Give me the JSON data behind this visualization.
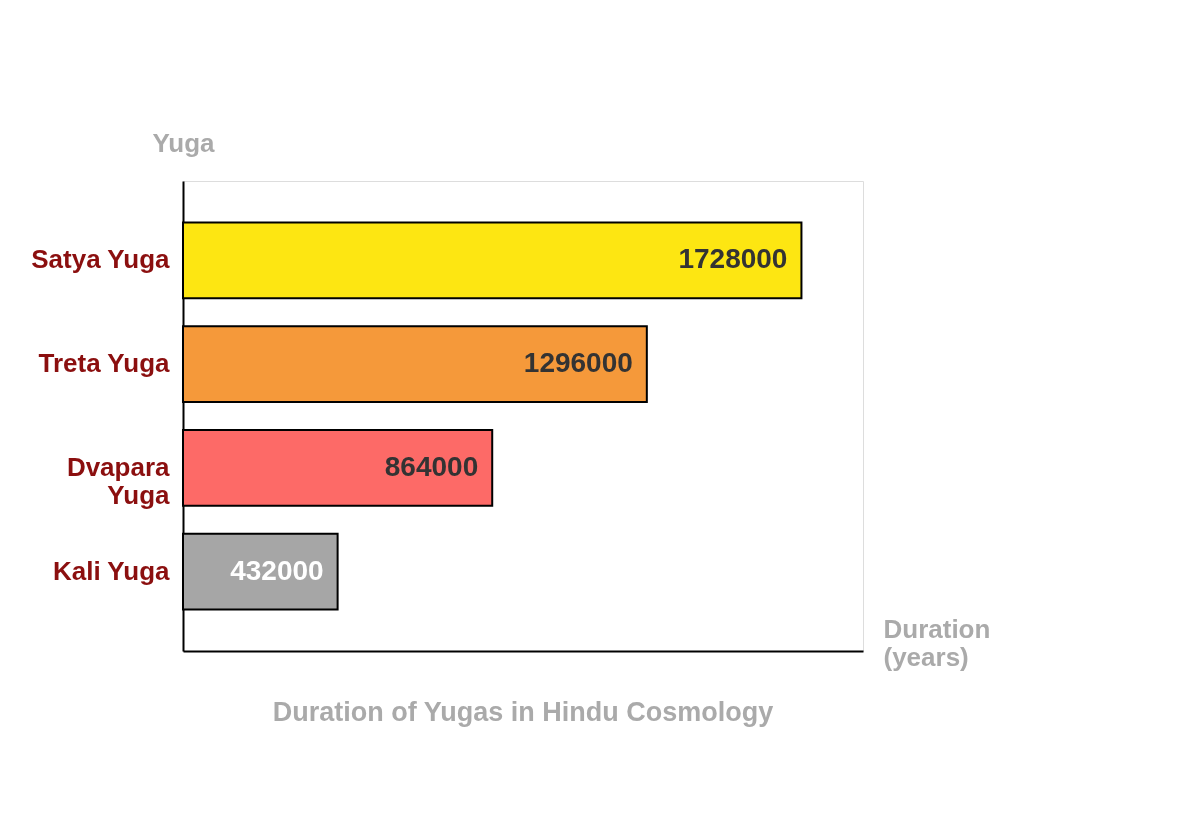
{
  "chart_data": {
    "type": "bar",
    "orientation": "horizontal",
    "title": "Duration of Yugas in Hindu Cosmology",
    "xlabel": "Duration (years)",
    "ylabel": "Yuga",
    "categories": [
      "Satya Yuga",
      "Treta Yuga",
      "Dvapara Yuga",
      "Kali Yuga"
    ],
    "values": [
      1728000,
      1296000,
      864000,
      432000
    ],
    "colors": [
      "#fde612",
      "#f5993a",
      "#fd6a67",
      "#a6a6a6"
    ],
    "xlim": [
      0,
      1900000
    ],
    "data_labels": true
  }
}
